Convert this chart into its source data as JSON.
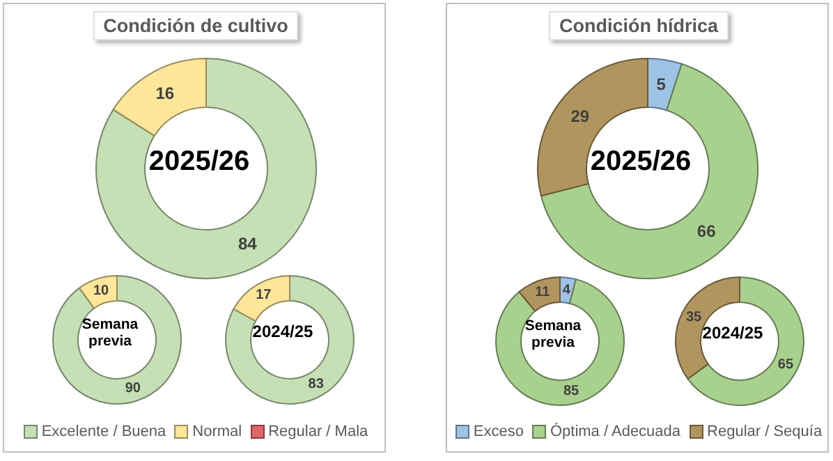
{
  "chart_data": [
    {
      "type": "donut",
      "title": "Condición de cultivo",
      "categories": [
        "Excelente / Buena",
        "Normal",
        "Regular / Mala"
      ],
      "colors": [
        "#c5e0b4",
        "#ffe699",
        "#e06666"
      ],
      "legend": "bottom",
      "series": [
        {
          "name": "2025/26",
          "values": [
            84,
            16,
            0
          ],
          "value_labels": [
            "84",
            "16",
            null
          ]
        },
        {
          "name": "Semana previa",
          "values": [
            90,
            10,
            0
          ],
          "value_labels": [
            "90",
            "10",
            null
          ]
        },
        {
          "name": "2024/25",
          "values": [
            83,
            17,
            0
          ],
          "value_labels": [
            "83",
            "17",
            null
          ]
        }
      ]
    },
    {
      "type": "donut",
      "title": "Condición hídrica",
      "categories": [
        "Exceso",
        "Óptima / Adecuada",
        "Regular / Sequía"
      ],
      "colors": [
        "#9dc3e6",
        "#a9d18e",
        "#b0955e"
      ],
      "legend": "bottom",
      "series": [
        {
          "name": "2025/26",
          "values": [
            5,
            66,
            29
          ],
          "value_labels": [
            "5",
            "66",
            "29"
          ]
        },
        {
          "name": "Semana previa",
          "values": [
            4,
            85,
            11
          ],
          "value_labels": [
            "4",
            "85",
            "11"
          ]
        },
        {
          "name": "2024/25",
          "values": [
            0,
            65,
            35
          ],
          "value_labels": [
            null,
            "65",
            "35"
          ]
        }
      ]
    }
  ]
}
